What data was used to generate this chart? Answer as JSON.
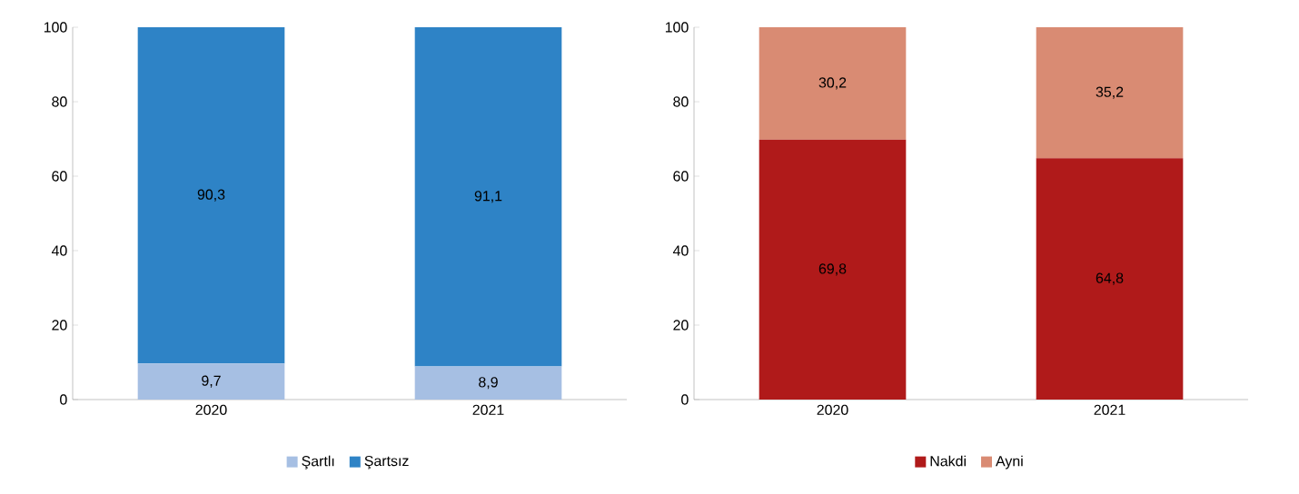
{
  "chart_data": [
    {
      "type": "bar",
      "stacked": true,
      "categories": [
        "2020",
        "2021"
      ],
      "series": [
        {
          "name": "Şartlı",
          "color": "#a6bfe3",
          "values": [
            9.7,
            8.9
          ],
          "value_labels": [
            "9,7",
            "8,9"
          ]
        },
        {
          "name": "Şartsız",
          "color": "#2e83c6",
          "values": [
            90.3,
            91.1
          ],
          "value_labels": [
            "90,3",
            "91,1"
          ]
        }
      ],
      "ylim": [
        0,
        100
      ],
      "yticks": [
        0,
        20,
        40,
        60,
        80,
        100
      ],
      "legend": "bottom"
    },
    {
      "type": "bar",
      "stacked": true,
      "categories": [
        "2020",
        "2021"
      ],
      "series": [
        {
          "name": "Nakdi",
          "color": "#b01a1a",
          "values": [
            69.8,
            64.8
          ],
          "value_labels": [
            "69,8",
            "64,8"
          ]
        },
        {
          "name": "Ayni",
          "color": "#d98b73",
          "values": [
            30.2,
            35.2
          ],
          "value_labels": [
            "30,2",
            "35,2"
          ]
        }
      ],
      "ylim": [
        0,
        100
      ],
      "yticks": [
        0,
        20,
        40,
        60,
        80,
        100
      ],
      "legend": "bottom"
    }
  ]
}
